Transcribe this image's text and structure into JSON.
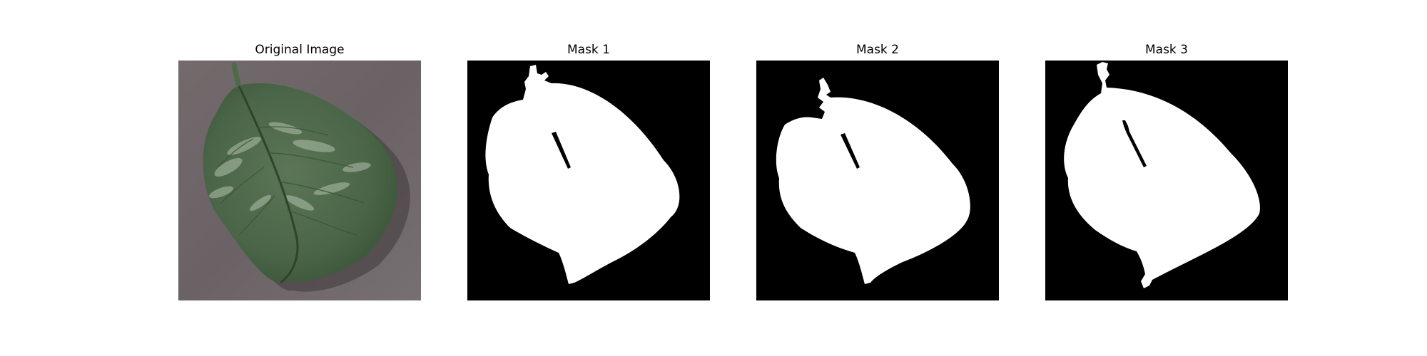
{
  "figure": {
    "panels": [
      {
        "title": "Original Image",
        "kind": "photo"
      },
      {
        "title": "Mask 1",
        "kind": "mask"
      },
      {
        "title": "Mask 2",
        "kind": "mask"
      },
      {
        "title": "Mask 3",
        "kind": "mask"
      }
    ],
    "colors": {
      "background": "#ffffff",
      "mask_background": "#000000",
      "mask_foreground": "#ffffff",
      "leaf": "#4f6b4b",
      "leaf_dark": "#3e5a3d",
      "leaf_patch": "#a8b6a2",
      "surface": "#6e6669"
    }
  }
}
